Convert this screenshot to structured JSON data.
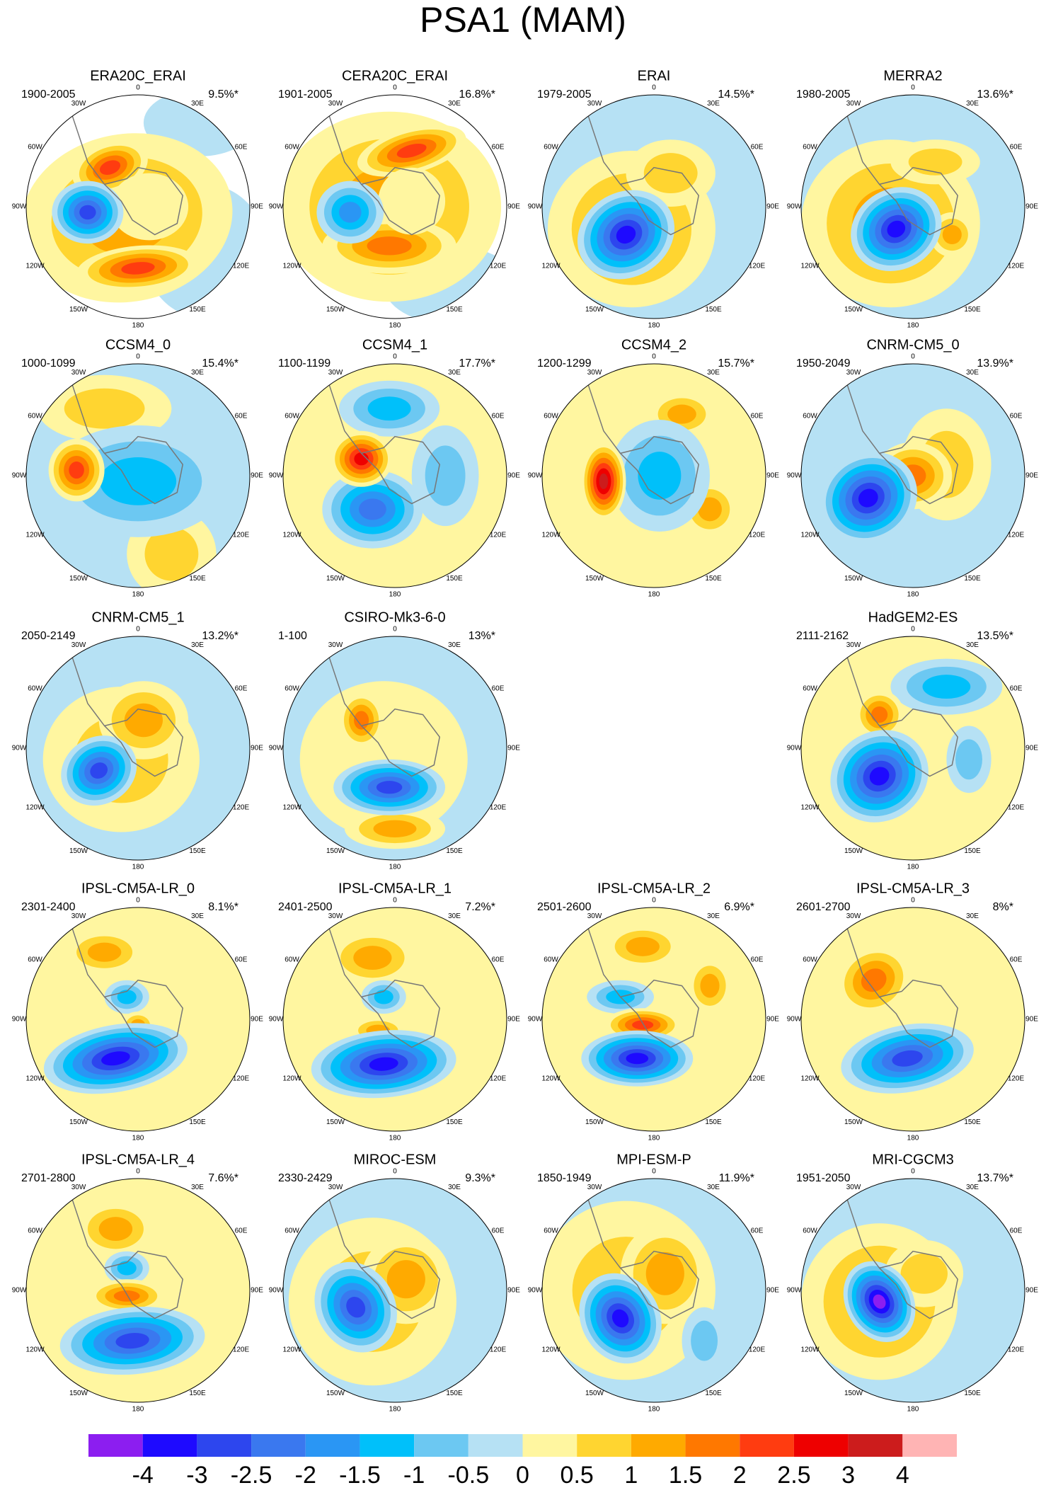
{
  "title": "PSA1 (MAM)",
  "lon_labels": [
    "0",
    "30E",
    "60E",
    "90E",
    "120E",
    "150E",
    "180",
    "150W",
    "120W",
    "90W",
    "60W",
    "30W"
  ],
  "panels": [
    {
      "name": "ERA20C_ERAI",
      "period": "1900-2005",
      "variance": "9.5%*"
    },
    {
      "name": "CERA20C_ERAI",
      "period": "1901-2005",
      "variance": "16.8%*"
    },
    {
      "name": "ERAI",
      "period": "1979-2005",
      "variance": "14.5%*"
    },
    {
      "name": "MERRA2",
      "period": "1980-2005",
      "variance": "13.6%*"
    },
    {
      "name": "CCSM4_0",
      "period": "1000-1099",
      "variance": "15.4%*"
    },
    {
      "name": "CCSM4_1",
      "period": "1100-1199",
      "variance": "17.7%*"
    },
    {
      "name": "CCSM4_2",
      "period": "1200-1299",
      "variance": "15.7%*"
    },
    {
      "name": "CNRM-CM5_0",
      "period": "1950-2049",
      "variance": "13.9%*"
    },
    {
      "name": "CNRM-CM5_1",
      "period": "2050-2149",
      "variance": "13.2%*"
    },
    {
      "name": "CSIRO-Mk3-6-0",
      "period": "1-100",
      "variance": "13%*"
    },
    {
      "name": "HadGEM2-ES",
      "period": "2111-2162",
      "variance": "13.5%*"
    },
    {
      "name": "IPSL-CM5A-LR_0",
      "period": "2301-2400",
      "variance": "8.1%*"
    },
    {
      "name": "IPSL-CM5A-LR_1",
      "period": "2401-2500",
      "variance": "7.2%*"
    },
    {
      "name": "IPSL-CM5A-LR_2",
      "period": "2501-2600",
      "variance": "6.9%*"
    },
    {
      "name": "IPSL-CM5A-LR_3",
      "period": "2601-2700",
      "variance": "8%*"
    },
    {
      "name": "IPSL-CM5A-LR_4",
      "period": "2701-2800",
      "variance": "7.6%*"
    },
    {
      "name": "MIROC-ESM",
      "period": "2330-2429",
      "variance": "9.3%*"
    },
    {
      "name": "MPI-ESM-P",
      "period": "1850-1949",
      "variance": "11.9%*"
    },
    {
      "name": "MRI-CGCM3",
      "period": "1951-2050",
      "variance": "13.7%*"
    }
  ],
  "colorbar": {
    "colors": [
      "#8c1ef0",
      "#1e0aff",
      "#2d46ee",
      "#3a78ef",
      "#2a96f4",
      "#00c0fa",
      "#6cc8f2",
      "#b6e1f4",
      "#fff6a0",
      "#ffd530",
      "#ffaa00",
      "#ff7800",
      "#ff3c10",
      "#ee0000",
      "#cc1c1c",
      "#ffb4b4"
    ],
    "labels": [
      -4,
      -3,
      -2.5,
      -2,
      -1.5,
      -1,
      -0.5,
      0,
      0.5,
      1,
      1.5,
      2,
      2.5,
      3,
      4
    ]
  }
}
